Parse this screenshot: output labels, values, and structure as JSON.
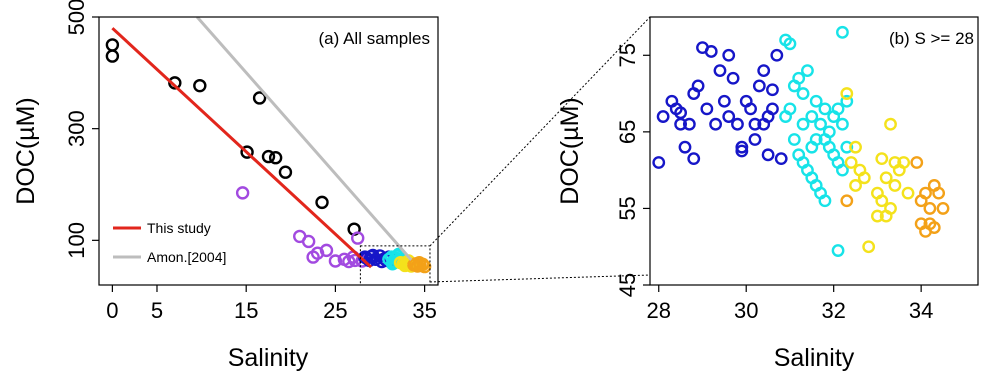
{
  "chart_data": [
    {
      "type": "scatter",
      "title": "(a) All samples",
      "xlabel": "Salinity",
      "ylabel": "DOC(µM)",
      "xlim": [
        -1.5,
        36.5
      ],
      "ylim": [
        20,
        500
      ],
      "xticks": [
        0,
        5,
        15,
        25,
        35
      ],
      "yticks": [
        100,
        300,
        500
      ],
      "grid": false,
      "legend_position": "bottom-left",
      "lines": [
        {
          "name": "This study",
          "color": "#e2261c",
          "x": [
            0,
            29
          ],
          "y": [
            480,
            52
          ]
        },
        {
          "name": "Amon.[2004]",
          "color": "#bdbdbd",
          "x": [
            9.5,
            33.5
          ],
          "y": [
            500,
            65
          ]
        }
      ],
      "zoom_box": {
        "x": [
          27.8,
          35.6
        ],
        "y": [
          20,
          90
        ]
      },
      "series": [
        {
          "group": "low",
          "color": "#000000",
          "points": [
            [
              0,
              450
            ],
            [
              0,
              430
            ],
            [
              7,
              382
            ],
            [
              9.8,
              377
            ],
            [
              16.5,
              355
            ],
            [
              15.1,
              258
            ],
            [
              17.5,
              250
            ],
            [
              18.3,
              248
            ],
            [
              19.4,
              222
            ],
            [
              23.5,
              168
            ],
            [
              27.1,
              120
            ]
          ]
        },
        {
          "group": "mid",
          "color": "#a24ae0",
          "points": [
            [
              14.6,
              185
            ],
            [
              21,
              107
            ],
            [
              22,
              98
            ],
            [
              23,
              77
            ],
            [
              24,
              82
            ],
            [
              22.5,
              70
            ],
            [
              25,
              63
            ],
            [
              26,
              66
            ],
            [
              27,
              70
            ],
            [
              26.5,
              62
            ],
            [
              28,
              63
            ],
            [
              27.5,
              104
            ],
            [
              27.2,
              64
            ]
          ]
        },
        {
          "group": "blue",
          "color": "#1616c8",
          "points": [
            [
              28.5,
              68
            ],
            [
              29,
              71
            ],
            [
              29.5,
              66
            ],
            [
              30,
              72
            ],
            [
              30.5,
              67
            ],
            [
              31,
              70
            ],
            [
              28.8,
              64
            ],
            [
              30.2,
              62
            ],
            [
              31.2,
              66
            ],
            [
              29.2,
              73
            ],
            [
              30.7,
              64
            ],
            [
              28.3,
              70
            ]
          ]
        },
        {
          "group": "cyan",
          "color": "#17e3e8",
          "points": [
            [
              31,
              66
            ],
            [
              31.3,
              70
            ],
            [
              31.5,
              63
            ],
            [
              31.8,
              68
            ],
            [
              32,
              64
            ],
            [
              32.1,
              75
            ],
            [
              31.6,
              60
            ],
            [
              31.9,
              72
            ],
            [
              32.2,
              61
            ],
            [
              31.4,
              58
            ]
          ]
        },
        {
          "group": "yellow",
          "color": "#f4e21c",
          "points": [
            [
              32.3,
              60
            ],
            [
              32.6,
              58
            ],
            [
              33,
              56
            ],
            [
              33.2,
              63
            ],
            [
              33.5,
              54
            ],
            [
              33,
              61
            ],
            [
              32.8,
              55
            ],
            [
              33.3,
              58
            ]
          ]
        },
        {
          "group": "orange",
          "color": "#f3a118",
          "points": [
            [
              33.8,
              56
            ],
            [
              34,
              58
            ],
            [
              34.2,
              54
            ],
            [
              34.5,
              55
            ],
            [
              34.8,
              57
            ],
            [
              35,
              53
            ],
            [
              34.4,
              60
            ]
          ]
        }
      ]
    },
    {
      "type": "scatter",
      "title": "(b) S >= 28",
      "xlabel": "Salinity",
      "ylabel": "DOC(µM)",
      "xlim": [
        27.8,
        35.3
      ],
      "ylim": [
        45,
        80
      ],
      "xticks": [
        28,
        30,
        32,
        34
      ],
      "yticks": [
        45,
        55,
        65,
        75
      ],
      "grid": false,
      "series": [
        {
          "group": "blue",
          "color": "#1616c8",
          "points": [
            [
              28,
              61
            ],
            [
              28.1,
              67
            ],
            [
              28.3,
              69
            ],
            [
              28.4,
              68
            ],
            [
              28.5,
              67.5
            ],
            [
              28.7,
              66
            ],
            [
              28.8,
              70
            ],
            [
              28.9,
              71
            ],
            [
              29,
              76
            ],
            [
              28.6,
              63
            ],
            [
              28.8,
              61.5
            ],
            [
              29.2,
              75.5
            ],
            [
              29.1,
              68
            ],
            [
              29.3,
              66
            ],
            [
              29.5,
              69
            ],
            [
              29.6,
              75
            ],
            [
              29.4,
              73
            ],
            [
              29.7,
              72
            ],
            [
              29.6,
              67
            ],
            [
              29.8,
              66
            ],
            [
              29.9,
              63
            ],
            [
              30,
              69
            ],
            [
              30.1,
              68
            ],
            [
              30.2,
              66
            ],
            [
              30.3,
              71
            ],
            [
              30.4,
              73
            ],
            [
              30.5,
              67
            ],
            [
              30.6,
              68
            ],
            [
              30.7,
              75
            ],
            [
              30.2,
              64
            ],
            [
              29.9,
              62.5
            ],
            [
              30.5,
              62
            ],
            [
              30.8,
              61.5
            ],
            [
              30.6,
              70.5
            ],
            [
              30.4,
              66
            ],
            [
              28.5,
              66
            ]
          ]
        },
        {
          "group": "cyan",
          "color": "#17e3e8",
          "points": [
            [
              30.9,
              77
            ],
            [
              31,
              76.5
            ],
            [
              31.1,
              71
            ],
            [
              31.2,
              72
            ],
            [
              31.3,
              70
            ],
            [
              31.4,
              73
            ],
            [
              31.5,
              67
            ],
            [
              31.6,
              69
            ],
            [
              31.7,
              66
            ],
            [
              31.8,
              64
            ],
            [
              31.9,
              63
            ],
            [
              32,
              62
            ],
            [
              32.1,
              61
            ],
            [
              32.2,
              60
            ],
            [
              31.1,
              64
            ],
            [
              31.2,
              62
            ],
            [
              31.3,
              61
            ],
            [
              31.4,
              60
            ],
            [
              31.5,
              59
            ],
            [
              31.6,
              58
            ],
            [
              31.7,
              57
            ],
            [
              31.8,
              56
            ],
            [
              31.9,
              65
            ],
            [
              32,
              67
            ],
            [
              32.1,
              68
            ],
            [
              32.2,
              66
            ],
            [
              32.3,
              63
            ],
            [
              31.5,
              63
            ],
            [
              31.3,
              66
            ],
            [
              31.6,
              64
            ],
            [
              31.8,
              68
            ],
            [
              32.2,
              78
            ],
            [
              32.3,
              69
            ],
            [
              32.1,
              49.5
            ],
            [
              30.9,
              67
            ],
            [
              31,
              68
            ]
          ]
        },
        {
          "group": "yellow",
          "color": "#f4e21c",
          "points": [
            [
              32.3,
              70
            ],
            [
              32.4,
              61
            ],
            [
              32.5,
              63
            ],
            [
              32.6,
              60
            ],
            [
              32.7,
              59
            ],
            [
              33,
              57
            ],
            [
              33.1,
              56
            ],
            [
              33.2,
              54
            ],
            [
              33.3,
              55
            ],
            [
              33.4,
              58
            ],
            [
              33.5,
              60
            ],
            [
              33.3,
              66
            ],
            [
              33.6,
              61
            ],
            [
              32.8,
              50
            ],
            [
              33,
              54
            ],
            [
              33.2,
              59
            ],
            [
              33.4,
              61
            ],
            [
              33.7,
              57
            ],
            [
              32.5,
              58
            ],
            [
              33.1,
              61.5
            ]
          ]
        },
        {
          "group": "orange",
          "color": "#f3a118",
          "points": [
            [
              32.3,
              56
            ],
            [
              33.9,
              61
            ],
            [
              34,
              56
            ],
            [
              34.1,
              57
            ],
            [
              34.2,
              55
            ],
            [
              34.3,
              58
            ],
            [
              34.4,
              57
            ],
            [
              34.5,
              55
            ],
            [
              34,
              53
            ],
            [
              34.2,
              53
            ],
            [
              34.3,
              52.5
            ],
            [
              34.1,
              52
            ]
          ]
        }
      ]
    }
  ],
  "legend": {
    "items": [
      {
        "label": "This study",
        "color": "#e2261c"
      },
      {
        "label": "Amon.[2004]",
        "color": "#bdbdbd"
      }
    ]
  }
}
